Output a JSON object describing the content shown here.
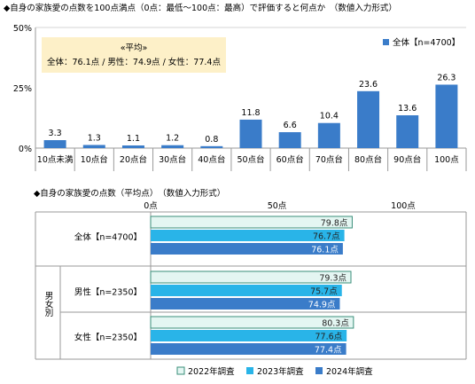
{
  "colors": {
    "bar_main": "#3a7cc9",
    "s2022_fill": "#e4f6f2",
    "s2022_border": "#3a8f7a",
    "s2023": "#29b4e8",
    "s2024": "#3a7cc9",
    "note_bg": "#fdf0c8",
    "axis": "#9a9a9a",
    "grid": "#d4d4d4"
  },
  "chart_data": [
    {
      "type": "bar",
      "title": "◆自身の家族愛の点数を100点満点（0点：最低〜100点：最高）で評価すると何点か　（数値入力形式）",
      "categories": [
        "10点未満",
        "10点台",
        "20点台",
        "30点台",
        "40点台",
        "50点台",
        "60点台",
        "70点台",
        "80点台",
        "90点台",
        "100点"
      ],
      "series": [
        {
          "name": "全体【n=4700】",
          "values": [
            3.3,
            1.3,
            1.1,
            1.2,
            0.8,
            11.8,
            6.6,
            10.4,
            23.6,
            13.6,
            26.3
          ]
        }
      ],
      "value_labels": [
        "3.3",
        "1.3",
        "1.1",
        "1.2",
        "0.8",
        "11.8",
        "6.6",
        "10.4",
        "23.6",
        "13.6",
        "26.3"
      ],
      "ylim": [
        0,
        50
      ],
      "yticks": [
        "0%",
        "25%",
        "50%"
      ],
      "legend_position": "top-right",
      "annotation": {
        "title": "«平均»",
        "text": "全体：76.1点 / 男性：74.9点 / 女性：77.4点"
      }
    },
    {
      "type": "bar",
      "orientation": "horizontal",
      "title": "◆自身の家族愛の点数（平均点）　（数値入力形式）",
      "xticks": [
        "0点",
        "50点",
        "100点"
      ],
      "xlim": [
        0,
        100
      ],
      "group_label": "男女別",
      "groups": [
        {
          "label": "全体【n=4700】",
          "values": [
            79.8,
            76.7,
            76.1
          ],
          "value_labels": [
            "79.8点",
            "76.7点",
            "76.1点"
          ]
        },
        {
          "label": "男性【n=2350】",
          "values": [
            79.3,
            75.7,
            74.9
          ],
          "value_labels": [
            "79.3点",
            "75.7点",
            "74.9点"
          ]
        },
        {
          "label": "女性【n=2350】",
          "values": [
            80.3,
            77.6,
            77.4
          ],
          "value_labels": [
            "80.3点",
            "77.6点",
            "77.4点"
          ]
        }
      ],
      "series": [
        {
          "name": "2022年調査"
        },
        {
          "name": "2023年調査"
        },
        {
          "name": "2024年調査"
        }
      ],
      "legend_position": "bottom"
    }
  ]
}
